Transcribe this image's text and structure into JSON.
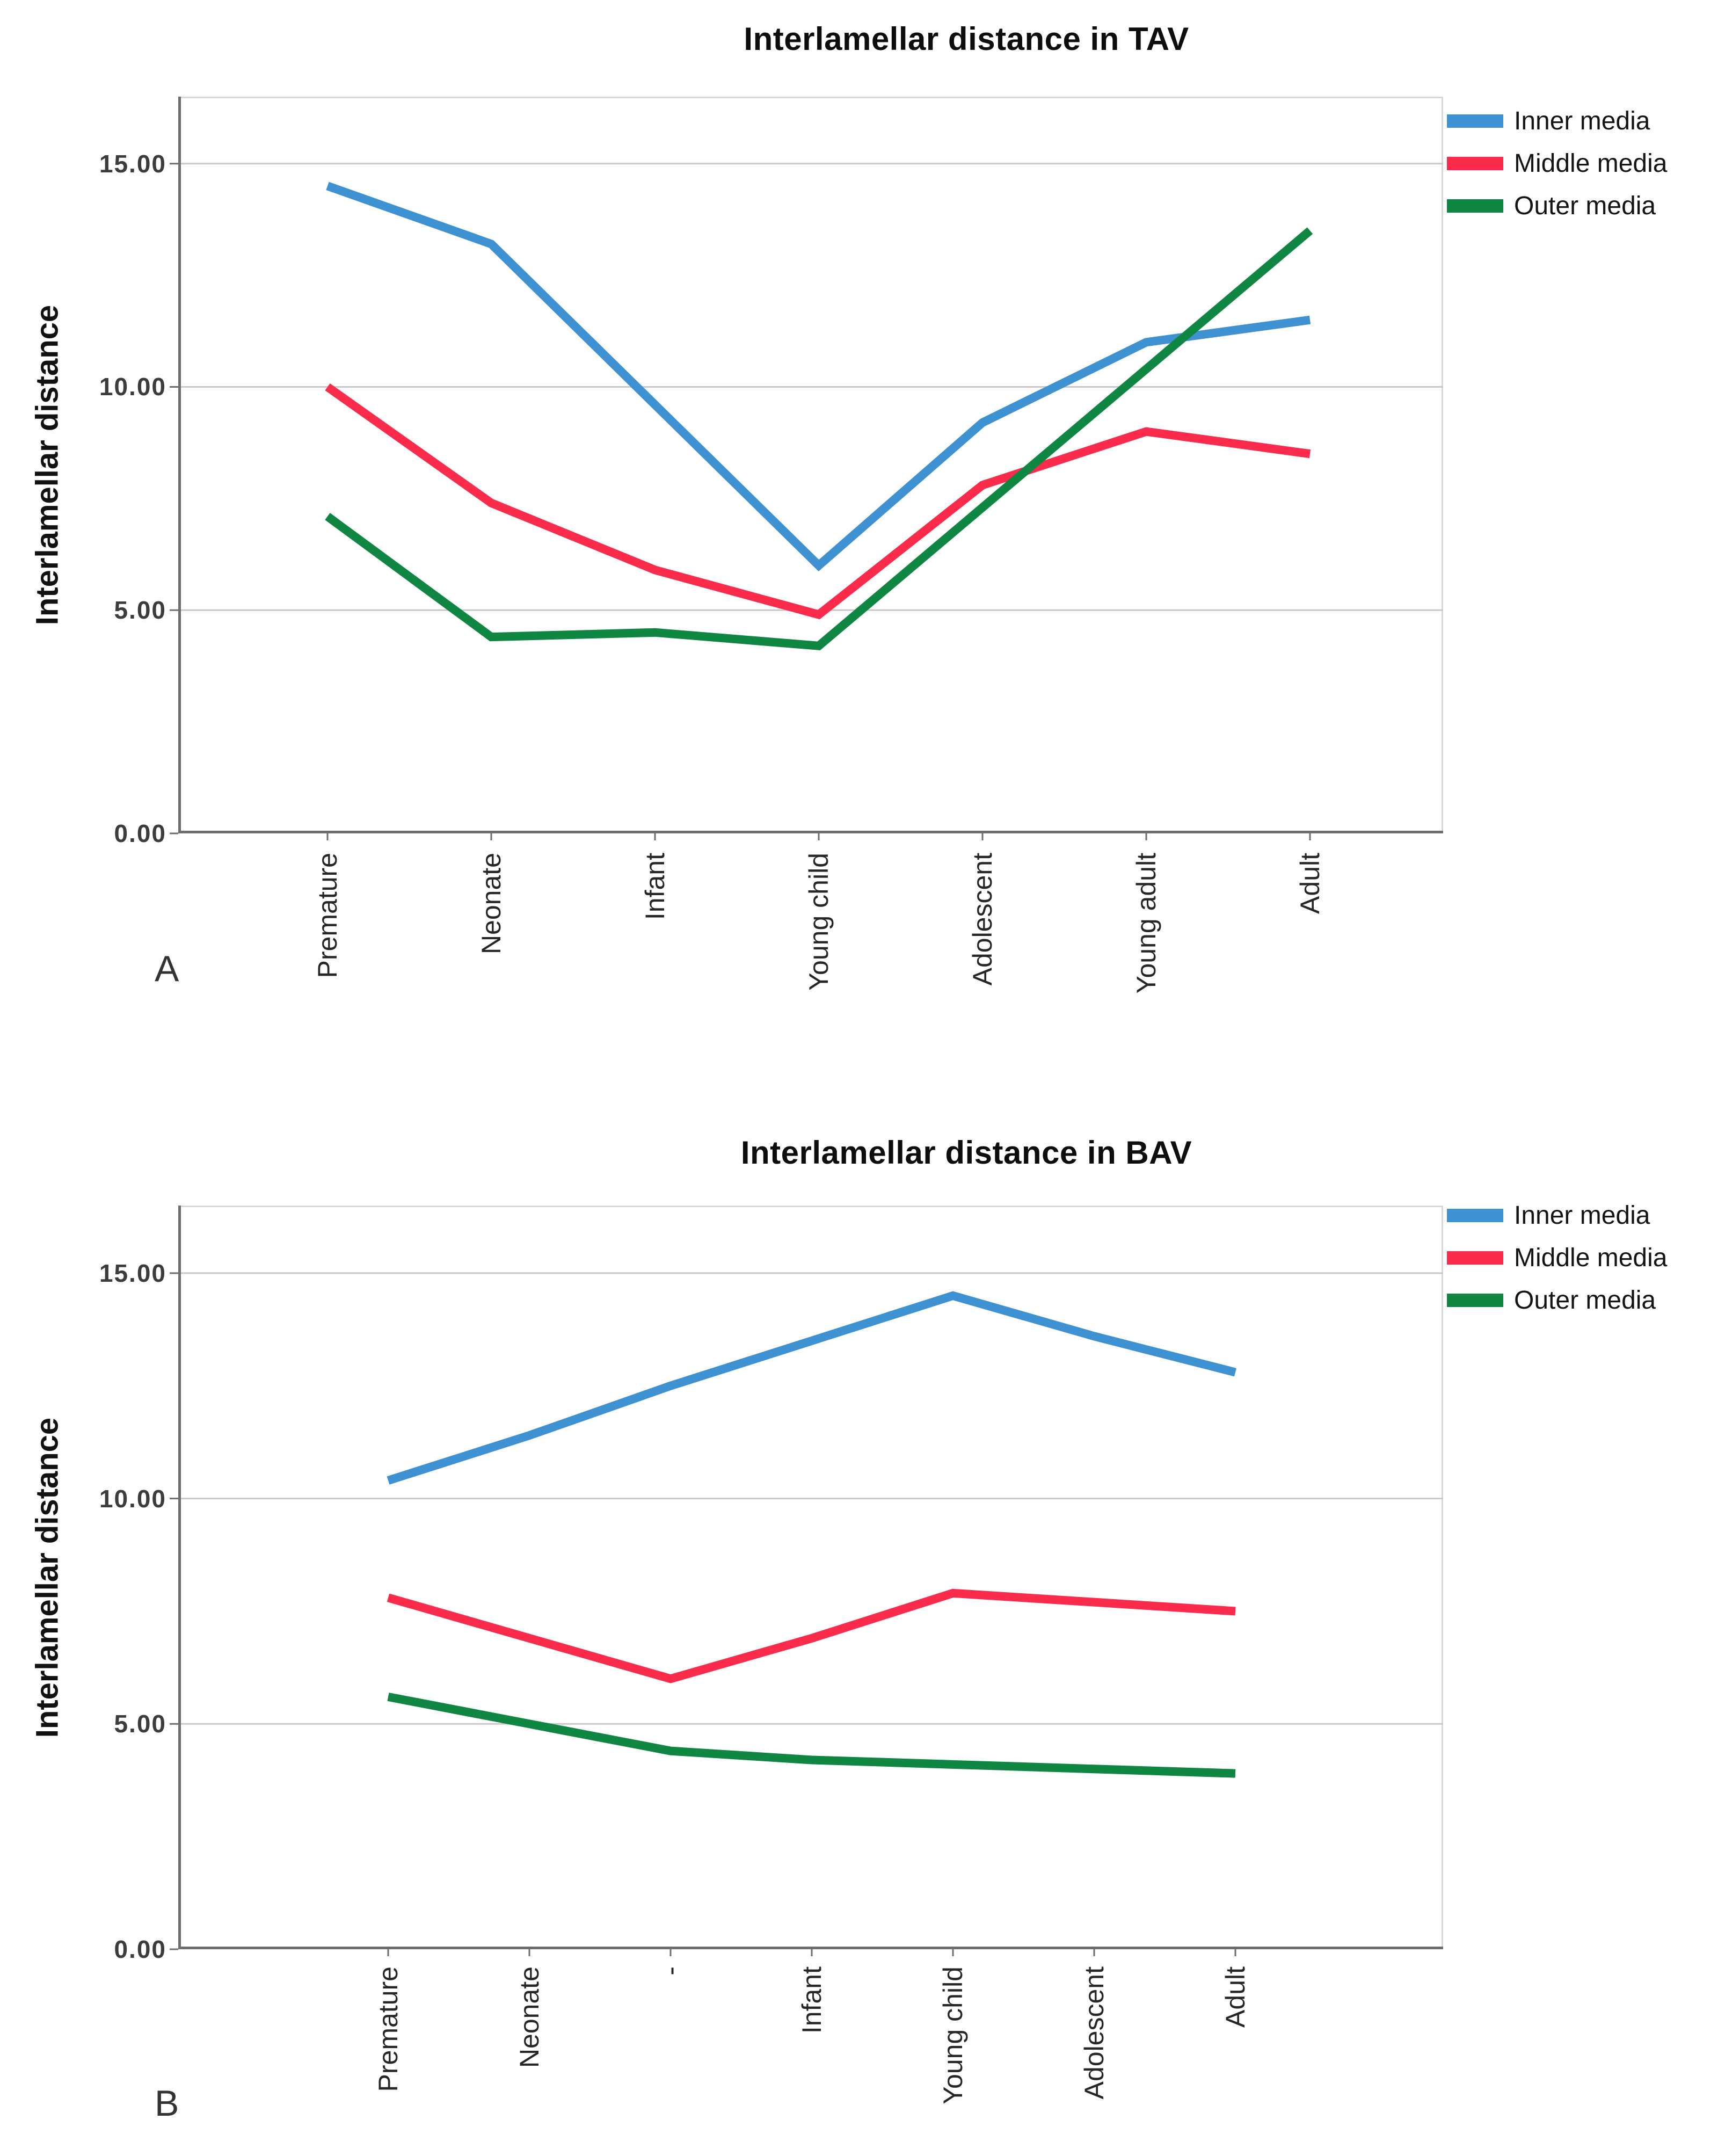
{
  "figure": {
    "panel_a_label": "A",
    "panel_b_label": "B"
  },
  "colors": {
    "inner_media": "#3E92D2",
    "middle_media": "#FA2B4B",
    "outer_media": "#0F8742",
    "gridline": "#C9C9C9",
    "plot_border": "#D8D8D8",
    "axis": "#6E6E6E",
    "text": "#1A1A1A"
  },
  "chart_data": [
    {
      "type": "line",
      "panel": "A",
      "title": "Interlamellar distance in TAV",
      "xlabel": "",
      "ylabel": "Interlamellar distance",
      "ylim": [
        0,
        16.5
      ],
      "grid": "horizontal",
      "legend_position": "top-right",
      "yticks": [
        {
          "value": 0,
          "label": "0.00"
        },
        {
          "value": 5,
          "label": "5.00"
        },
        {
          "value": 10,
          "label": "10.00"
        },
        {
          "value": 15,
          "label": "15.00"
        }
      ],
      "categories": [
        "Premature",
        "Neonate",
        "Infant",
        "Young child",
        "Adolescent",
        "Young adult",
        "Adult"
      ],
      "series": [
        {
          "name": "Inner media",
          "color": "#3E92D2",
          "values": [
            14.5,
            13.2,
            9.6,
            6.0,
            9.2,
            11.0,
            11.5
          ]
        },
        {
          "name": "Middle media",
          "color": "#FA2B4B",
          "values": [
            10.0,
            7.4,
            5.9,
            4.9,
            7.8,
            9.0,
            8.5
          ]
        },
        {
          "name": "Outer media",
          "color": "#0F8742",
          "values": [
            7.1,
            4.4,
            4.5,
            4.2,
            7.3,
            10.4,
            13.5
          ]
        }
      ]
    },
    {
      "type": "line",
      "panel": "B",
      "title": "Interlamellar distance in BAV",
      "xlabel": "",
      "ylabel": "Interlamellar distance",
      "ylim": [
        0,
        16.5
      ],
      "grid": "horizontal",
      "legend_position": "top-right",
      "yticks": [
        {
          "value": 0,
          "label": "0.00"
        },
        {
          "value": 5,
          "label": "5.00"
        },
        {
          "value": 10,
          "label": "10.00"
        },
        {
          "value": 15,
          "label": "15.00"
        }
      ],
      "categories": [
        "Premature",
        "Neonate",
        "-",
        "Infant",
        "Young child",
        "Adolescent",
        "Adult"
      ],
      "series": [
        {
          "name": "Inner media",
          "color": "#3E92D2",
          "values": [
            10.4,
            11.4,
            12.5,
            13.5,
            14.5,
            13.6,
            12.8
          ]
        },
        {
          "name": "Middle media",
          "color": "#FA2B4B",
          "values": [
            7.8,
            6.9,
            6.0,
            6.9,
            7.9,
            7.7,
            7.5
          ]
        },
        {
          "name": "Outer media",
          "color": "#0F8742",
          "values": [
            5.6,
            5.0,
            4.4,
            4.2,
            4.1,
            4.0,
            3.9
          ]
        }
      ]
    }
  ]
}
